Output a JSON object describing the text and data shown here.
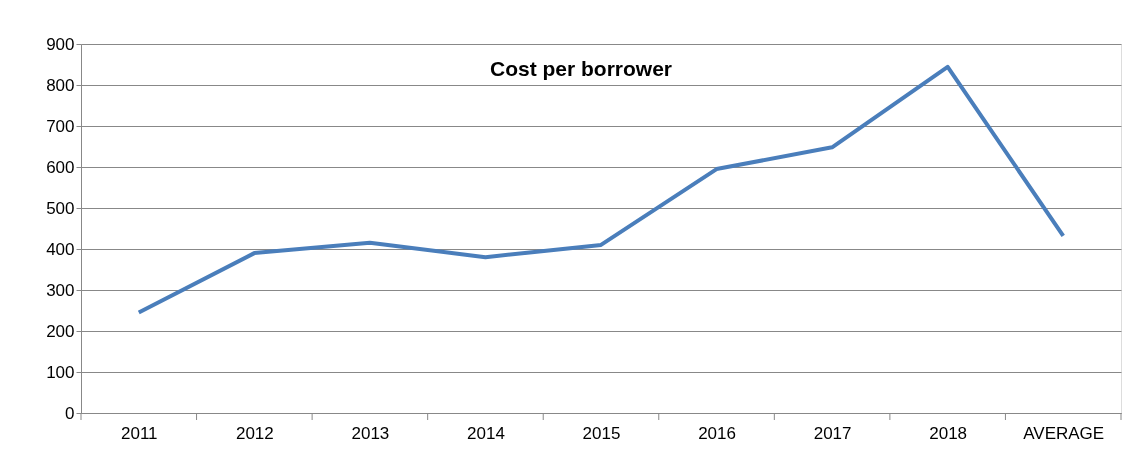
{
  "chart_data": {
    "type": "line",
    "title": "Cost per borrower",
    "categories": [
      "2011",
      "2012",
      "2013",
      "2014",
      "2015",
      "2016",
      "2017",
      "2018",
      "AVERAGE"
    ],
    "series": [
      {
        "color": "#4a7ebb",
        "values": [
          245,
          390,
          415,
          380,
          410,
          595,
          648,
          844,
          432
        ]
      }
    ],
    "ylim": [
      0,
      900
    ],
    "yticks": [
      0,
      100,
      200,
      300,
      400,
      500,
      600,
      700,
      800,
      900
    ],
    "grid": "y",
    "marker": "none",
    "line_style": "solid"
  }
}
